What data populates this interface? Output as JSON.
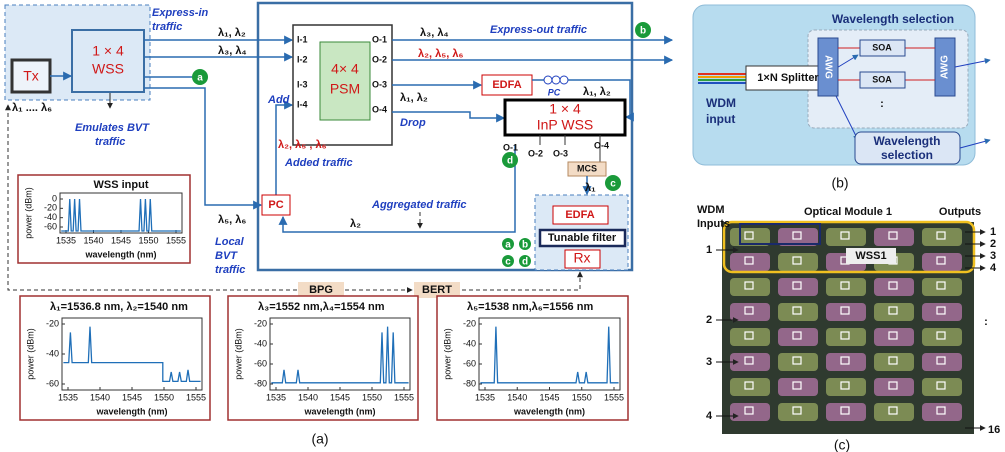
{
  "panel_a": {
    "label": "(a)",
    "express_in": [
      "Express-in",
      "traffic"
    ],
    "express_out": "Express-out traffic",
    "tx": "Tx",
    "tx_range": "λ₁ .... λ₆",
    "wss": [
      "1 × 4",
      "WSS"
    ],
    "emulates": [
      "Emulates BVT",
      "traffic"
    ],
    "psm": [
      "4× 4",
      "PSM"
    ],
    "psm_inputs": [
      "I-1",
      "I-2",
      "I-3",
      "I-4"
    ],
    "psm_outputs": [
      "O-1",
      "O-2",
      "O-3",
      "O-4"
    ],
    "add": "Add",
    "drop": "Drop",
    "edfa": "EDFA",
    "pc_drop": "PC",
    "pc_add": "PC",
    "inp_wss": [
      "1 × 4",
      "InP WSS"
    ],
    "inp_outputs": [
      "O-1",
      "O-2",
      "O-3",
      "O-4"
    ],
    "mcs": "MCS",
    "added_traffic": "Added traffic",
    "aggregated_traffic": "Aggregated traffic",
    "local_bvt": [
      "Local",
      "BVT",
      "traffic"
    ],
    "receiver": {
      "edfa": "EDFA",
      "filter": "Tunable filter",
      "rx": "Rx",
      "monitor_points": [
        "a",
        "b",
        "c",
        "d"
      ]
    },
    "points": {
      "a": "a",
      "b": "b",
      "c": "c",
      "d": "d"
    },
    "bpg": "BPG",
    "bert": "BERT",
    "lambdas": {
      "in_1": "λ₁, λ₂",
      "in_2": "λ₃, λ₄",
      "local": "λ₅, λ₆",
      "aggregated": "λ₂",
      "out_1": "λ₃, λ₄",
      "out_2": "λ₂, λ₅, λ₆",
      "drop": "λ₁, λ₂",
      "pc_out": "λ₁, λ₂",
      "added": "λ₂, λ₅ , λ₆",
      "mcs_out": "λ₁"
    },
    "plots": [
      {
        "title": "WSS input",
        "xlabel": "wavelength (nm)",
        "ylabel": "power (dBm)",
        "xticks": [
          1535,
          1540,
          1545,
          1550,
          1555
        ],
        "yticks": [
          0,
          -20,
          -40,
          -60
        ]
      },
      {
        "title": "λ₁=1536.8 nm, λ₂=1540 nm",
        "xlabel": "wavelength (nm)",
        "ylabel": "power (dBm)",
        "xticks": [
          1535,
          1540,
          1545,
          1550,
          1555
        ],
        "yticks": [
          -20,
          -40,
          -60
        ]
      },
      {
        "title": "λ₃=1552 nm,λ₄=1554 nm",
        "xlabel": "wavelength (nm)",
        "ylabel": "power (dBm)",
        "xticks": [
          1535,
          1540,
          1545,
          1550,
          1555
        ],
        "yticks": [
          -20,
          -40,
          -60,
          -80
        ]
      },
      {
        "title": "λ₅=1538 nm,λ₆=1556 nm",
        "xlabel": "wavelength (nm)",
        "ylabel": "power (dBm)",
        "xticks": [
          1535,
          1540,
          1545,
          1550,
          1555
        ],
        "yticks": [
          -20,
          -40,
          -60,
          -80
        ]
      }
    ]
  },
  "panel_b": {
    "label": "(b)",
    "title": "Wavelength selection",
    "splitter": "1×N Splitter",
    "input": [
      "WDM",
      "input"
    ],
    "awg": [
      "AWG",
      "AWG"
    ],
    "soa": [
      "SOA",
      "SOA"
    ],
    "dots": ":",
    "selection": [
      "Wavelength",
      "selection"
    ]
  },
  "panel_c": {
    "label": "(c)",
    "inputs_title": [
      "WDM",
      "Inputs"
    ],
    "module": "Optical Module 1",
    "outputs_title": "Outputs",
    "inputs": [
      "1",
      "2",
      "3",
      "4"
    ],
    "outputs": [
      "1",
      "2",
      "3",
      "4"
    ],
    "dots": ":",
    "last_output": "16",
    "wss": "WSS1"
  }
}
